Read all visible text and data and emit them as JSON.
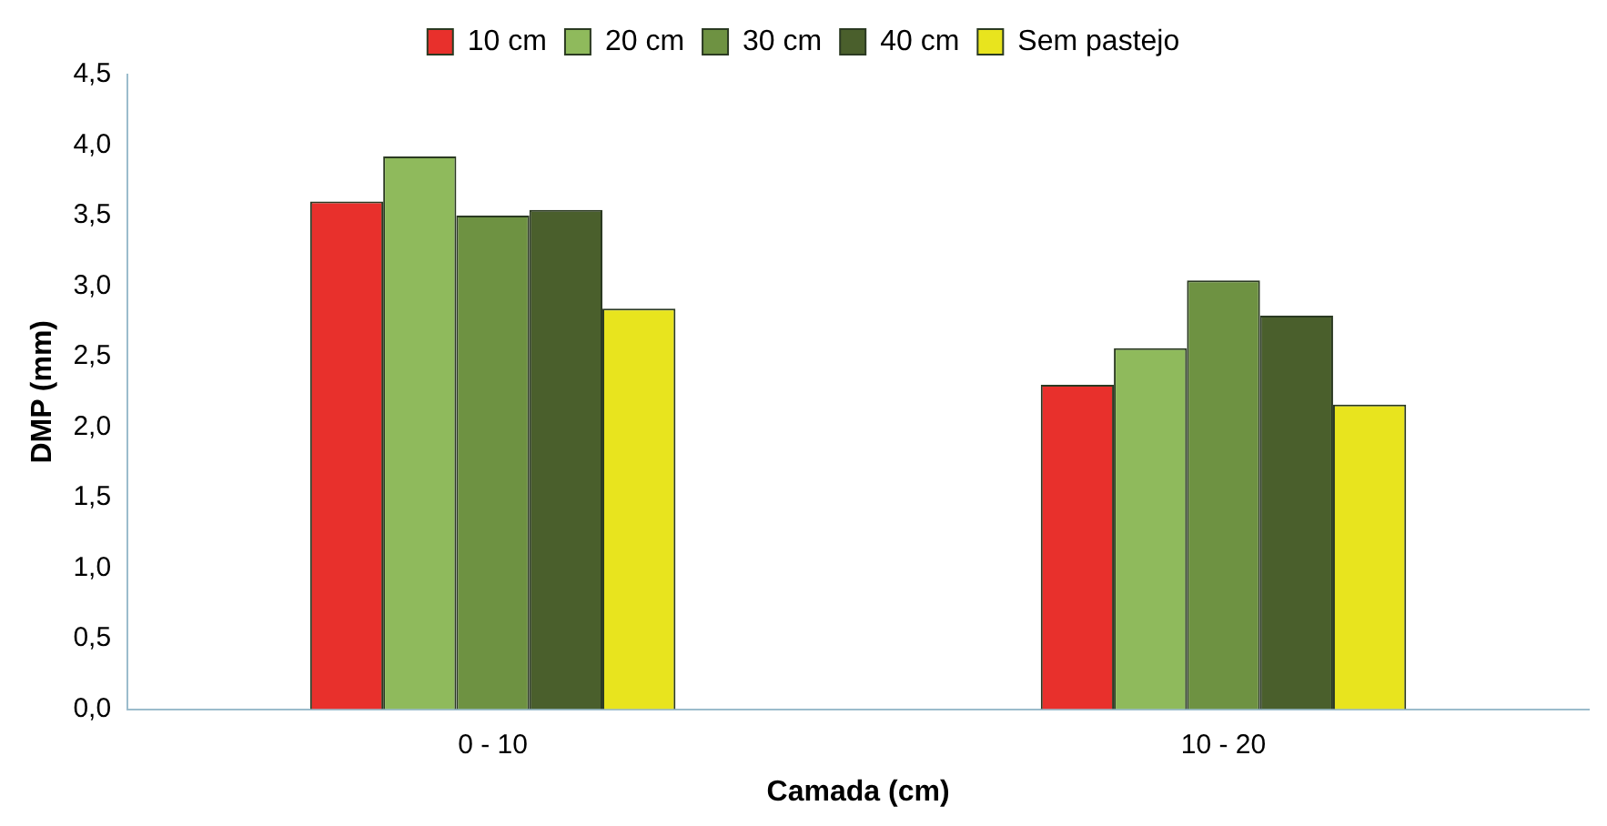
{
  "chart_data": {
    "type": "bar",
    "xlabel": "Camada (cm)",
    "ylabel": "DMP (mm)",
    "categories": [
      "0 - 10",
      "10 - 20"
    ],
    "series": [
      {
        "name": "10 cm",
        "color": "#e8302c",
        "values": [
          3.6,
          2.3
        ]
      },
      {
        "name": "20 cm",
        "color": "#8fba5c",
        "values": [
          3.92,
          2.56
        ]
      },
      {
        "name": "30 cm",
        "color": "#6e9242",
        "values": [
          3.5,
          3.04
        ]
      },
      {
        "name": "40 cm",
        "color": "#4a5f2c",
        "values": [
          3.54,
          2.79
        ]
      },
      {
        "name": "Sem pastejo",
        "color": "#e8e41e",
        "values": [
          2.84,
          2.16
        ]
      }
    ],
    "ylim": [
      0,
      4.5
    ],
    "yticks": [
      {
        "value": 0,
        "label": "0,0"
      },
      {
        "value": 0.5,
        "label": "0,5"
      },
      {
        "value": 1,
        "label": "1,0"
      },
      {
        "value": 1.5,
        "label": "1,5"
      },
      {
        "value": 2,
        "label": "2,0"
      },
      {
        "value": 2.5,
        "label": "2,5"
      },
      {
        "value": 3,
        "label": "3,0"
      },
      {
        "value": 3.5,
        "label": "3,5"
      },
      {
        "value": 4,
        "label": "4,0"
      },
      {
        "value": 4.5,
        "label": "4,5"
      }
    ],
    "grid": false,
    "legend": "top"
  }
}
